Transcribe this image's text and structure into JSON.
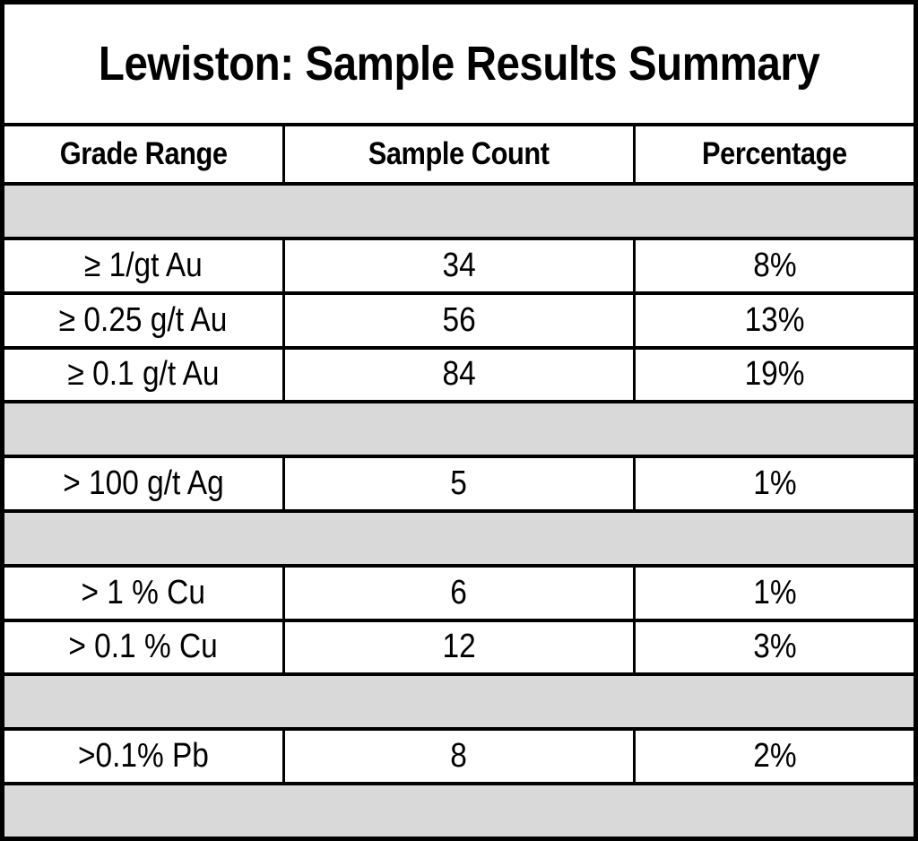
{
  "table": {
    "title": "Lewiston: Sample Results Summary",
    "columns": [
      "Grade Range",
      "Sample Count",
      "Percentage"
    ],
    "rows": [
      {
        "grade": "≥ 1/gt Au",
        "count": "34",
        "percentage": "8%"
      },
      {
        "grade": "≥ 0.25 g/t Au",
        "count": "56",
        "percentage": "13%"
      },
      {
        "grade": "≥ 0.1 g/t Au",
        "count": "84",
        "percentage": "19%"
      },
      {
        "grade": "> 100 g/t Ag",
        "count": "5",
        "percentage": "1%"
      },
      {
        "grade": "> 1 % Cu",
        "count": "6",
        "percentage": "1%"
      },
      {
        "grade": "> 0.1 % Cu",
        "count": "12",
        "percentage": "3%"
      },
      {
        "grade": ">0.1% Pb",
        "count": "8",
        "percentage": "2%"
      }
    ],
    "colors": {
      "separator_fill": "#d9d9d9",
      "border": "#000000",
      "background": "#ffffff",
      "text": "#000000"
    }
  },
  "chart_data": {
    "type": "table",
    "title": "Lewiston: Sample Results Summary",
    "columns": [
      "Grade Range",
      "Sample Count",
      "Percentage"
    ],
    "rows": [
      [
        "≥ 1/gt Au",
        34,
        "8%"
      ],
      [
        "≥ 0.25 g/t Au",
        56,
        "13%"
      ],
      [
        "≥ 0.1 g/t Au",
        84,
        "19%"
      ],
      [
        "> 100 g/t Ag",
        5,
        "1%"
      ],
      [
        "> 1 % Cu",
        6,
        "1%"
      ],
      [
        "> 0.1 % Cu",
        12,
        "3%"
      ],
      [
        ">0.1% Pb",
        8,
        "2%"
      ]
    ],
    "layout_notes": "Rows grouped by metal (Au, Ag, Cu, Pb); groups separated by empty full-width gray bands; gray band directly under header and at very bottom; all cells center-aligned with black grid borders"
  }
}
